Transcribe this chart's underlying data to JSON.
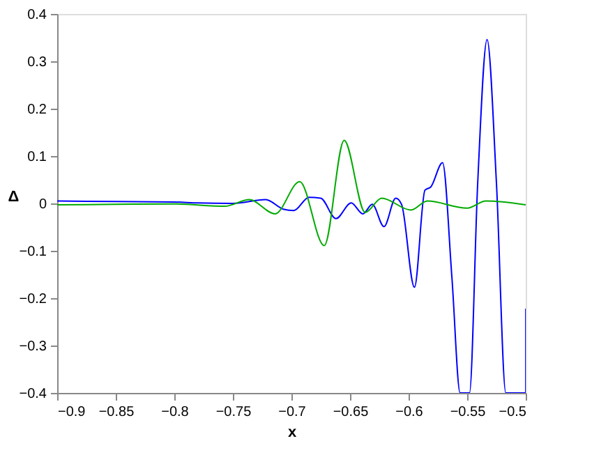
{
  "chart_data": {
    "type": "line",
    "xlabel": "x",
    "ylabel": "Δ",
    "xlim": [
      -0.9,
      -0.5
    ],
    "ylim": [
      -0.4,
      0.4
    ],
    "xticks": [
      -0.9,
      -0.85,
      -0.8,
      -0.75,
      -0.7,
      -0.65,
      -0.6,
      -0.55,
      -0.5
    ],
    "yticks": [
      -0.4,
      -0.3,
      -0.2,
      -0.1,
      0,
      0.1,
      0.2,
      0.3,
      0.4
    ],
    "grid": false,
    "legend": false,
    "line_style": "solid",
    "marker": "none",
    "series": [
      {
        "color": "#0000ff",
        "x": [
          -0.9,
          -0.85,
          -0.8,
          -0.78,
          -0.75,
          -0.722,
          -0.707,
          -0.698,
          -0.685,
          -0.675,
          -0.662,
          -0.649,
          -0.639,
          -0.631,
          -0.621,
          -0.611,
          -0.606,
          -0.595,
          -0.586,
          -0.581,
          -0.571,
          -0.563,
          -0.556,
          -0.548,
          -0.541,
          -0.533,
          -0.525,
          -0.517,
          -0.5,
          -0.5
        ],
        "values": [
          0.005,
          0.004,
          0.003,
          0.001,
          0.0,
          0.008,
          -0.012,
          -0.015,
          0.013,
          0.011,
          -0.032,
          0.001,
          -0.022,
          -0.002,
          -0.049,
          0.011,
          -0.002,
          -0.177,
          0.028,
          0.035,
          0.086,
          -0.157,
          -0.4,
          -0.4,
          0.043,
          0.346,
          0.043,
          -0.4,
          -0.4,
          -0.222
        ]
      },
      {
        "color": "#00aa00",
        "x": [
          -0.9,
          -0.85,
          -0.8,
          -0.757,
          -0.736,
          -0.714,
          -0.693,
          -0.672,
          -0.655,
          -0.637,
          -0.623,
          -0.598,
          -0.584,
          -0.55,
          -0.534,
          -0.5
        ],
        "values": [
          -0.003,
          -0.002,
          -0.001,
          -0.006,
          0.008,
          -0.022,
          0.046,
          -0.089,
          0.133,
          -0.019,
          0.011,
          -0.014,
          0.005,
          -0.01,
          0.005,
          -0.003
        ]
      }
    ]
  }
}
